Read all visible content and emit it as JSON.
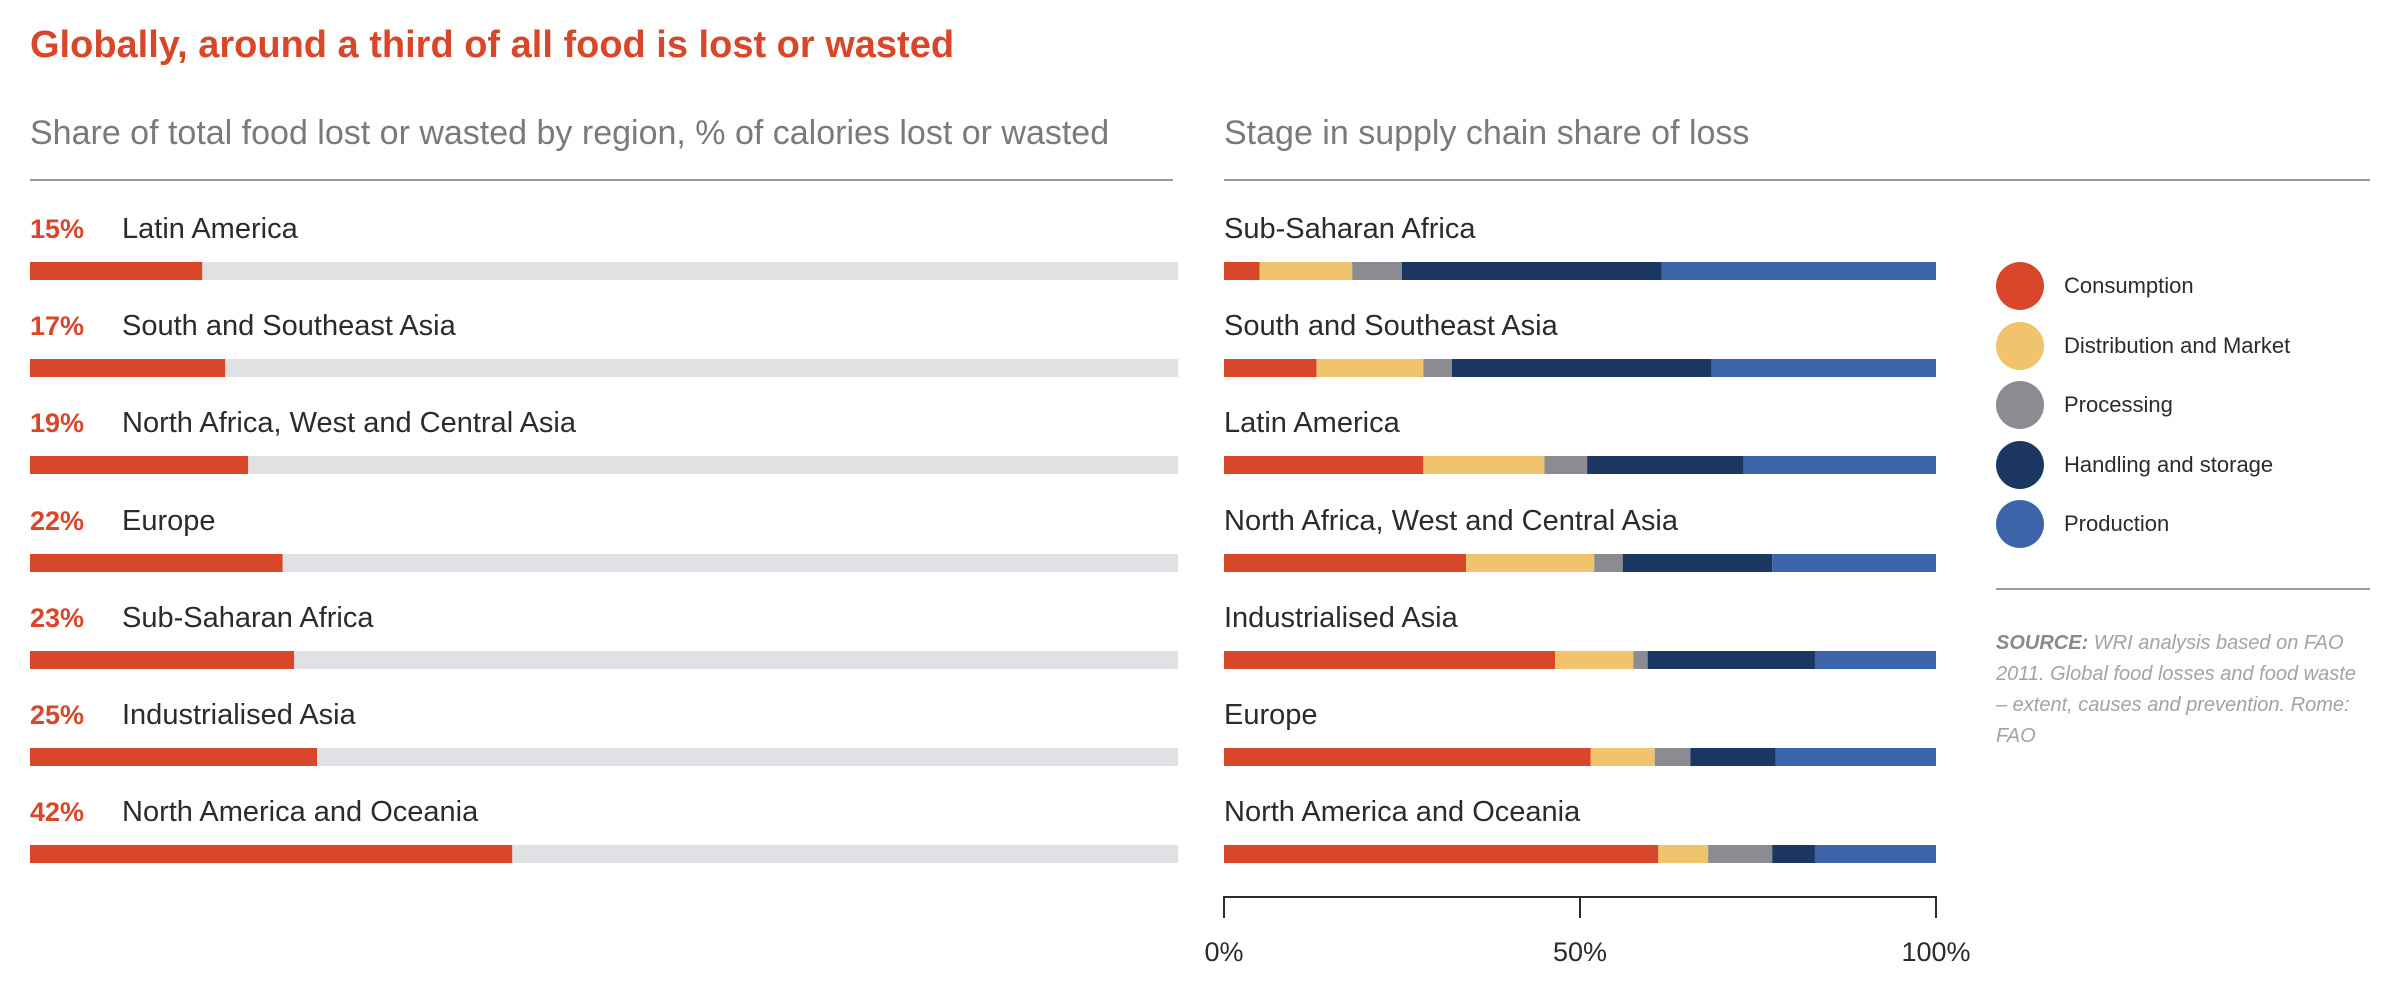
{
  "title": "Globally, around a third of all food is lost or wasted",
  "colors": {
    "accent": "#d9472b",
    "track": "#e1e1e5",
    "Consumption": "#d9472b",
    "Distribution and Market": "#f0c36c",
    "Processing": "#8a8c91",
    "Handling and storage": "#1c3662",
    "Production": "#3c65a9"
  },
  "source": {
    "label": "SOURCE:",
    "text": "WRI analysis based on FAO 2011. Global food losses and food waste – extent, causes and prevention. Rome: FAO"
  },
  "chart_data": [
    {
      "type": "bar",
      "orientation": "horizontal",
      "title": "Share of total food lost or wasted by region, % of calories lost or wasted",
      "categories": [
        "Latin America",
        "South and Southeast Asia",
        "North Africa, West and Central Asia",
        "Europe",
        "Sub-Saharan Africa",
        "Industrialised Asia",
        "North America and Oceania"
      ],
      "values": [
        15,
        17,
        19,
        22,
        23,
        25,
        42
      ],
      "value_labels": [
        "15%",
        "17%",
        "19%",
        "22%",
        "23%",
        "25%",
        "42%"
      ],
      "xlim": [
        0,
        100
      ],
      "grid": false
    },
    {
      "type": "bar",
      "orientation": "horizontal",
      "stacked": true,
      "title": "Stage in supply chain share of loss",
      "categories": [
        "Sub-Saharan Africa",
        "South and Southeast Asia",
        "Latin America",
        "North Africa, West and Central Asia",
        "Industrialised Asia",
        "Europe",
        "North America and Oceania"
      ],
      "series": [
        {
          "name": "Consumption",
          "values": [
            5,
            13,
            28,
            34,
            46.5,
            51.5,
            61
          ]
        },
        {
          "name": "Distribution and Market",
          "values": [
            13,
            15,
            17,
            18,
            11,
            9,
            7
          ]
        },
        {
          "name": "Processing",
          "values": [
            7,
            4,
            6,
            4,
            2,
            5,
            9
          ]
        },
        {
          "name": "Handling and storage",
          "values": [
            36.5,
            36.5,
            22,
            21,
            23.5,
            12,
            6
          ]
        },
        {
          "name": "Production",
          "values": [
            38.5,
            31.5,
            27,
            23,
            17,
            22.5,
            17
          ]
        }
      ],
      "x_ticks": [
        "0%",
        "50%",
        "100%"
      ],
      "xlim": [
        0,
        100
      ],
      "legend": "right",
      "grid": false
    }
  ]
}
